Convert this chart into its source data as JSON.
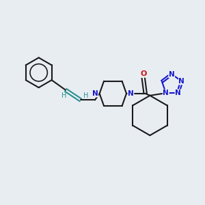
{
  "bg_color": "#e8edf2",
  "bond_color": "#1a1a1a",
  "nitrogen_color": "#1515cc",
  "oxygen_color": "#cc1515",
  "alkene_color": "#2a9090",
  "figsize": [
    3.0,
    3.0
  ],
  "dpi": 100,
  "lw": 1.5,
  "fs": 7.5,
  "xlim": [
    0,
    10
  ],
  "ylim": [
    0,
    10
  ]
}
